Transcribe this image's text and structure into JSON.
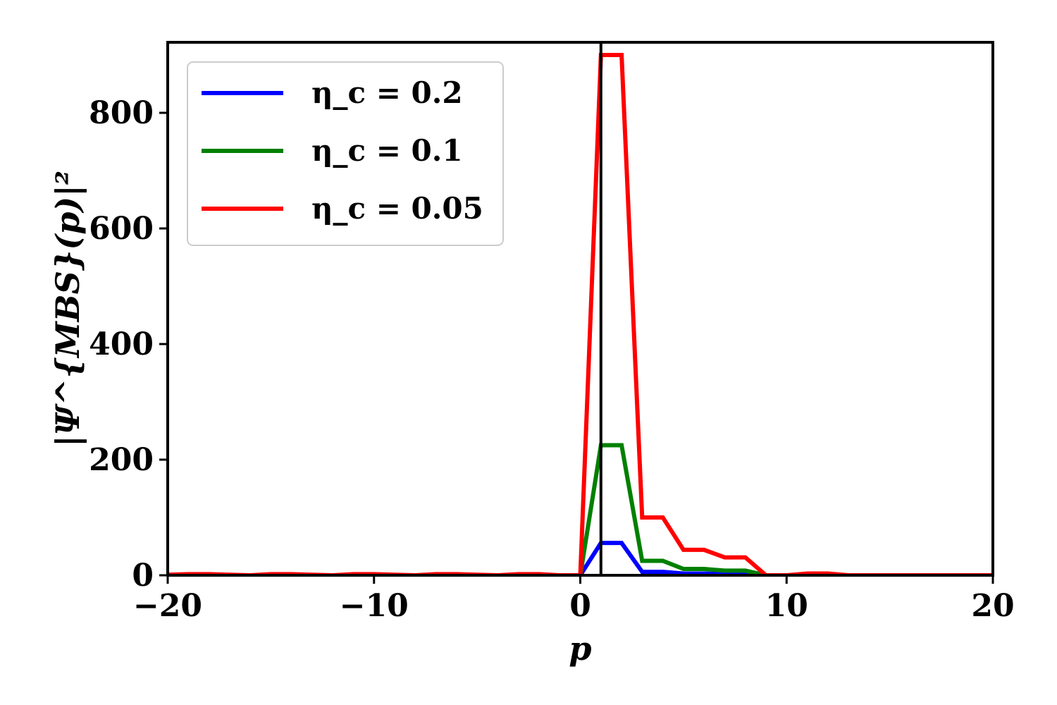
{
  "chart_data": {
    "type": "line",
    "xlabel": "p",
    "ylabel": "|Ψ^{MBS}(p)|²",
    "xlim": [
      -20,
      20
    ],
    "ylim": [
      0,
      922
    ],
    "xticks": [
      -20,
      -10,
      0,
      10,
      20
    ],
    "xtick_labels": [
      "−20",
      "−10",
      "0",
      "10",
      "20"
    ],
    "yticks": [
      0,
      200,
      400,
      600,
      800
    ],
    "ytick_labels": [
      "0",
      "200",
      "400",
      "600",
      "800"
    ],
    "grid": false,
    "legend_position": "top-left",
    "vertical_line_x": 1,
    "vertical_line_color": "#000000",
    "series": [
      {
        "name": "η_c = 0.2",
        "color": "#0000ff",
        "x": [
          -20,
          -19,
          -18,
          -17,
          -16,
          -15,
          -14,
          -13,
          -12,
          -11,
          -10,
          -9,
          -8,
          -7,
          -6,
          -5,
          -4,
          -3,
          -2,
          -1,
          0,
          1,
          2,
          3,
          4,
          5,
          6,
          7,
          8,
          9,
          10,
          11,
          12,
          13,
          14,
          15,
          16,
          17,
          18,
          19,
          20
        ],
        "values": [
          0,
          0,
          0,
          0,
          0,
          0,
          0,
          0,
          0,
          0,
          0,
          0,
          0,
          0,
          0,
          0,
          0,
          0,
          0,
          0,
          0,
          56,
          56,
          6,
          6,
          3,
          3,
          2,
          2,
          0,
          0,
          0,
          0,
          0,
          0,
          0,
          0,
          0,
          0,
          0,
          0
        ]
      },
      {
        "name": "η_c = 0.1",
        "color": "#008000",
        "x": [
          -20,
          -19,
          -18,
          -17,
          -16,
          -15,
          -14,
          -13,
          -12,
          -11,
          -10,
          -9,
          -8,
          -7,
          -6,
          -5,
          -4,
          -3,
          -2,
          -1,
          0,
          1,
          2,
          3,
          4,
          5,
          6,
          7,
          8,
          9,
          10,
          11,
          12,
          13,
          14,
          15,
          16,
          17,
          18,
          19,
          20
        ],
        "values": [
          0,
          0,
          0,
          0,
          0,
          0,
          0,
          0,
          0,
          0,
          0,
          0,
          0,
          0,
          0,
          0,
          0,
          0,
          0,
          0,
          0,
          225,
          225,
          25,
          25,
          11,
          11,
          8,
          8,
          0,
          0,
          0,
          0,
          0,
          0,
          0,
          0,
          0,
          0,
          0,
          0
        ]
      },
      {
        "name": "η_c = 0.05",
        "color": "#ff0000",
        "x": [
          -20,
          -19,
          -18,
          -17,
          -16,
          -15,
          -14,
          -13,
          -12,
          -11,
          -10,
          -9,
          -8,
          -7,
          -6,
          -5,
          -4,
          -3,
          -2,
          -1,
          0,
          1,
          2,
          3,
          4,
          5,
          6,
          7,
          8,
          9,
          10,
          11,
          12,
          13,
          14,
          15,
          16,
          17,
          18,
          19,
          20
        ],
        "values": [
          1,
          2,
          2,
          1,
          0,
          2,
          2,
          1,
          0,
          2,
          2,
          1,
          0,
          2,
          2,
          1,
          0,
          2,
          2,
          0,
          0,
          900,
          900,
          100,
          100,
          44,
          44,
          31,
          31,
          0,
          0,
          3,
          3,
          0,
          0,
          0,
          0,
          0,
          0,
          0,
          0
        ]
      }
    ]
  }
}
